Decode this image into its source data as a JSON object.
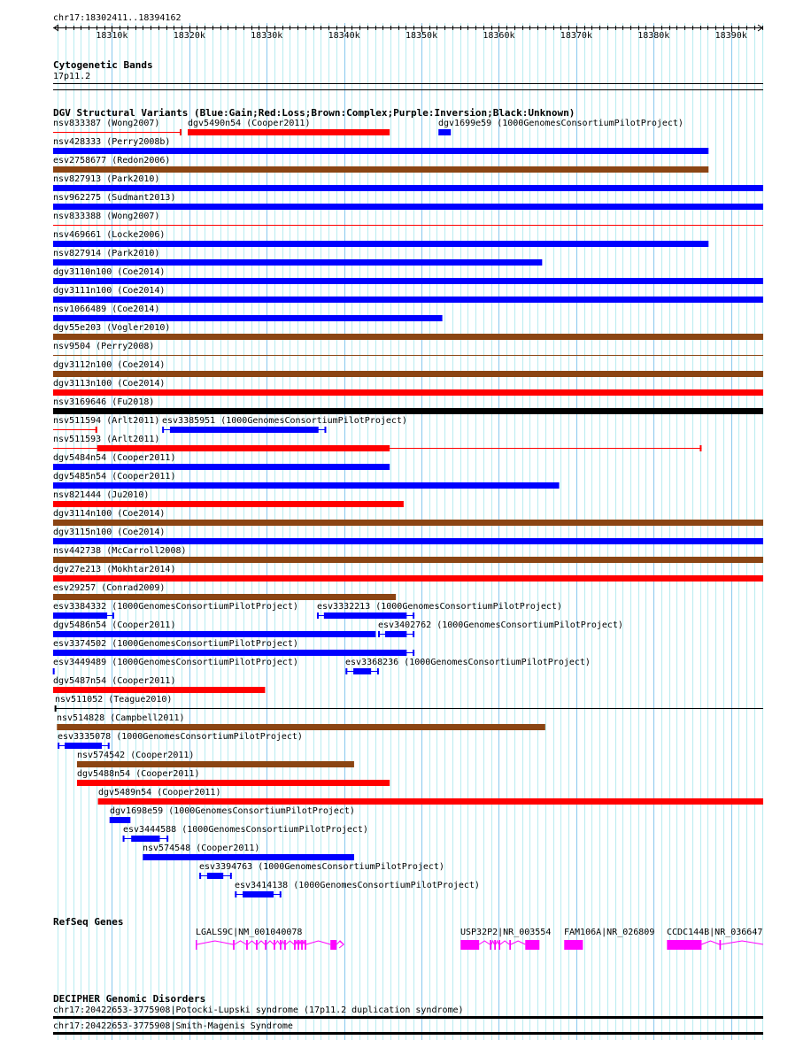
{
  "ruler": {
    "location": "chr17:18302411..18394162",
    "start_kb": 18302.411,
    "end_kb": 18394.162,
    "tick_labels": [
      "18310k",
      "18320k",
      "18330k",
      "18340k",
      "18350k",
      "18360k",
      "18370k",
      "18380k",
      "18390k"
    ]
  },
  "cyto": {
    "title": "Cytogenetic Bands",
    "band": "17p11.2"
  },
  "dgv": {
    "title": "DGV Structural Variants (Blue:Gain;Red:Loss;Brown:Complex;Purple:Inversion;Black:Unknown)",
    "colors": {
      "gain": "#0000ff",
      "loss": "#ff0000",
      "complex": "#8b4513",
      "unknown": "#000000"
    },
    "rows": [
      [
        {
          "label": "nsv833387 (Wong2007)",
          "type": "loss",
          "start": 18302.41,
          "end": 18319.0,
          "thin": true,
          "tick": "end"
        },
        {
          "label": "dgv5490n54 (Cooper2011)",
          "type": "loss",
          "start": 18319.8,
          "end": 18345.9
        },
        {
          "label": "dgv1699e59 (1000GenomesConsortiumPilotProject)",
          "type": "gain",
          "start": 18352.2,
          "end": 18353.8
        }
      ],
      [
        {
          "label": "nsv428333 (Perry2008b)",
          "type": "gain",
          "start": 18302.41,
          "end": 18387.1
        }
      ],
      [
        {
          "label": "esv2758677 (Redon2006)",
          "type": "complex",
          "start": 18302.41,
          "end": 18387.1
        }
      ],
      [
        {
          "label": "nsv827913 (Park2010)",
          "type": "gain",
          "start": 18302.41,
          "end": 18394.16
        }
      ],
      [
        {
          "label": "nsv962275 (Sudmant2013)",
          "type": "gain",
          "start": 18302.41,
          "end": 18394.16
        }
      ],
      [
        {
          "label": "nsv833388 (Wong2007)",
          "type": "loss",
          "start": 18302.41,
          "end": 18394.16,
          "thin": true
        }
      ],
      [
        {
          "label": "nsv469661 (Locke2006)",
          "type": "gain",
          "start": 18302.41,
          "end": 18387.1
        }
      ],
      [
        {
          "label": "nsv827914 (Park2010)",
          "type": "gain",
          "start": 18302.41,
          "end": 18365.6
        }
      ],
      [
        {
          "label": "dgv3110n100 (Coe2014)",
          "type": "gain",
          "start": 18302.41,
          "end": 18394.16
        }
      ],
      [
        {
          "label": "dgv3111n100 (Coe2014)",
          "type": "gain",
          "start": 18302.41,
          "end": 18394.16
        }
      ],
      [
        {
          "label": "nsv1066489 (Coe2014)",
          "type": "gain",
          "start": 18302.41,
          "end": 18352.7
        }
      ],
      [
        {
          "label": "dgv55e203 (Vogler2010)",
          "type": "complex",
          "start": 18302.41,
          "end": 18394.16
        }
      ],
      [
        {
          "label": "nsv9504 (Perry2008)",
          "type": "complex",
          "start": 18302.41,
          "end": 18394.16,
          "thin": true
        }
      ],
      [
        {
          "label": "dgv3112n100 (Coe2014)",
          "type": "complex",
          "start": 18302.41,
          "end": 18394.16
        }
      ],
      [
        {
          "label": "dgv3113n100 (Coe2014)",
          "type": "loss",
          "start": 18302.41,
          "end": 18394.16
        }
      ],
      [
        {
          "label": "nsv3169646 (Fu2018)",
          "type": "unknown",
          "start": 18302.41,
          "end": 18394.16
        }
      ],
      [
        {
          "label": "nsv511594 (Arlt2011)",
          "type": "loss",
          "start": 18302.41,
          "end": 18308.1,
          "thin": true,
          "tick": "end"
        },
        {
          "label": "esv3385951 (1000GenomesConsortiumPilotProject)",
          "type": "gain",
          "start": 18316.5,
          "end": 18337.7,
          "thick_start": 18317.5,
          "thick_end": 18336.7,
          "tick": "both"
        }
      ],
      [
        {
          "label": "nsv511593 (Arlt2011)",
          "type": "loss",
          "start": 18302.41,
          "end": 18386.2,
          "thick_start": 18308.1,
          "thick_end": 18345.9,
          "tick": "end"
        }
      ],
      [
        {
          "label": "dgv5484n54 (Cooper2011)",
          "type": "gain",
          "start": 18302.41,
          "end": 18345.9
        }
      ],
      [
        {
          "label": "dgv5485n54 (Cooper2011)",
          "type": "gain",
          "start": 18302.41,
          "end": 18367.8
        }
      ],
      [
        {
          "label": "nsv821444 (Ju2010)",
          "type": "loss",
          "start": 18302.41,
          "end": 18347.7
        }
      ],
      [
        {
          "label": "dgv3114n100 (Coe2014)",
          "type": "complex",
          "start": 18302.41,
          "end": 18394.16
        }
      ],
      [
        {
          "label": "dgv3115n100 (Coe2014)",
          "type": "gain",
          "start": 18302.41,
          "end": 18394.16
        }
      ],
      [
        {
          "label": "nsv442738 (McCarroll2008)",
          "type": "complex",
          "start": 18302.41,
          "end": 18394.16
        }
      ],
      [
        {
          "label": "dgv27e213 (Mokhtar2014)",
          "type": "loss",
          "start": 18302.41,
          "end": 18394.16
        }
      ],
      [
        {
          "label": "esv29257 (Conrad2009)",
          "type": "complex",
          "start": 18302.41,
          "end": 18346.7
        }
      ],
      [
        {
          "label": "esv3384332 (1000GenomesConsortiumPilotProject)",
          "type": "gain",
          "start": 18302.41,
          "end": 18310.3,
          "thick_start": 18302.41,
          "thick_end": 18309.4,
          "tick": "end"
        },
        {
          "label": "esv3332213 (1000GenomesConsortiumPilotProject)",
          "type": "gain",
          "start": 18336.5,
          "end": 18349.1,
          "thick_start": 18337.4,
          "thick_end": 18348.1,
          "tick": "both"
        }
      ],
      [
        {
          "label": "dgv5486n54 (Cooper2011)",
          "type": "gain",
          "start": 18302.41,
          "end": 18344.1
        },
        {
          "label": "esv3402762 (1000GenomesConsortiumPilotProject)",
          "type": "gain",
          "start": 18344.4,
          "end": 18349.1,
          "thick_start": 18345.3,
          "thick_end": 18348.1,
          "tick": "both"
        }
      ],
      [
        {
          "label": "esv3374502 (1000GenomesConsortiumPilotProject)",
          "type": "gain",
          "start": 18302.41,
          "end": 18349.1,
          "thick_start": 18302.41,
          "thick_end": 18348.1,
          "tick": "end"
        }
      ],
      [
        {
          "label": "esv3449489 (1000GenomesConsortiumPilotProject)",
          "type": "gain",
          "start": 18302.41,
          "end": 18302.6,
          "thin": true,
          "tick": "end"
        },
        {
          "label": "esv3368236 (1000GenomesConsortiumPilotProject)",
          "type": "gain",
          "start": 18340.2,
          "end": 18344.5,
          "thick_start": 18341.2,
          "thick_end": 18343.5,
          "tick": "both"
        }
      ],
      [
        {
          "label": "dgv5487n54 (Cooper2011)",
          "type": "loss",
          "start": 18302.41,
          "end": 18329.8
        }
      ],
      [
        {
          "label": "nsv511052 (Teague2010)",
          "type": "unknown",
          "start": 18302.6,
          "end": 18394.16,
          "thin": true,
          "tick": "start"
        }
      ],
      [
        {
          "label": "nsv514828 (Campbell2011)",
          "type": "complex",
          "start": 18302.9,
          "end": 18366.0
        }
      ],
      [
        {
          "label": "esv3335078 (1000GenomesConsortiumPilotProject)",
          "type": "gain",
          "start": 18303.0,
          "end": 18309.7,
          "thick_start": 18303.9,
          "thick_end": 18308.7,
          "tick": "both"
        }
      ],
      [
        {
          "label": "nsv574542 (Cooper2011)",
          "type": "complex",
          "start": 18305.5,
          "end": 18341.3
        }
      ],
      [
        {
          "label": "dgv5488n54 (Cooper2011)",
          "type": "loss",
          "start": 18305.5,
          "end": 18345.9
        }
      ],
      [
        {
          "label": "dgv5489n54 (Cooper2011)",
          "type": "loss",
          "start": 18308.2,
          "end": 18394.16
        }
      ],
      [
        {
          "label": "dgv1698e59 (1000GenomesConsortiumPilotProject)",
          "type": "gain",
          "start": 18309.7,
          "end": 18312.4
        }
      ],
      [
        {
          "label": "esv3444588 (1000GenomesConsortiumPilotProject)",
          "type": "gain",
          "start": 18311.4,
          "end": 18317.3,
          "thick_start": 18312.5,
          "thick_end": 18316.2,
          "tick": "both"
        }
      ],
      [
        {
          "label": "nsv574548 (Cooper2011)",
          "type": "gain",
          "start": 18314.0,
          "end": 18341.3
        }
      ],
      [
        {
          "label": "esv3394763 (1000GenomesConsortiumPilotProject)",
          "type": "gain",
          "start": 18321.3,
          "end": 18325.5,
          "thick_start": 18322.3,
          "thick_end": 18324.4,
          "tick": "both"
        }
      ],
      [
        {
          "label": "esv3414138 (1000GenomesConsortiumPilotProject)",
          "type": "gain",
          "start": 18325.9,
          "end": 18331.9,
          "thick_start": 18326.9,
          "thick_end": 18330.9,
          "tick": "both"
        }
      ]
    ]
  },
  "refseq": {
    "title": "RefSeq Genes",
    "color": "#ff00ff",
    "genes": [
      {
        "label": "LGALS9C|NM_001040078",
        "start": 18320.84,
        "end": 18339.95,
        "strand": "+",
        "exons": [
          [
            18320.84,
            18321.0
          ],
          [
            18325.65,
            18325.85
          ],
          [
            18327.36,
            18327.56
          ],
          [
            18328.62,
            18328.82
          ],
          [
            18329.77,
            18329.97
          ],
          [
            18330.91,
            18331.11
          ],
          [
            18331.71,
            18331.91
          ],
          [
            18332.28,
            18332.48
          ],
          [
            18333.54,
            18333.74
          ],
          [
            18334.0,
            18334.2
          ],
          [
            18334.46,
            18334.66
          ],
          [
            18334.92,
            18335.12
          ],
          [
            18338.24,
            18339.04
          ]
        ]
      },
      {
        "label": "USP32P2|NR_003554",
        "start": 18355.06,
        "end": 18365.25,
        "exons": [
          [
            18355.06,
            18357.46
          ],
          [
            18358.84,
            18359.04
          ],
          [
            18359.41,
            18359.61
          ],
          [
            18359.98,
            18360.18
          ],
          [
            18361.36,
            18361.56
          ],
          [
            18363.42,
            18365.25
          ]
        ]
      },
      {
        "label": "FAM106A|NR_026809",
        "start": 18368.45,
        "end": 18370.86,
        "exons": [
          [
            18368.45,
            18370.86
          ]
        ]
      },
      {
        "label": "CCDC144B|NR_036647",
        "start": 18381.73,
        "end": 18394.16,
        "exons": [
          [
            18381.73,
            18386.2
          ],
          [
            18388.5,
            18388.7
          ]
        ]
      }
    ]
  },
  "decipher": {
    "title": "DECIPHER Genomic Disorders",
    "items": [
      "chr17:20422653-3775908|Potocki-Lupski syndrome (17p11.2 duplication syndrome)",
      "chr17:20422653-3775908|Smith-Magenis Syndrome"
    ]
  }
}
